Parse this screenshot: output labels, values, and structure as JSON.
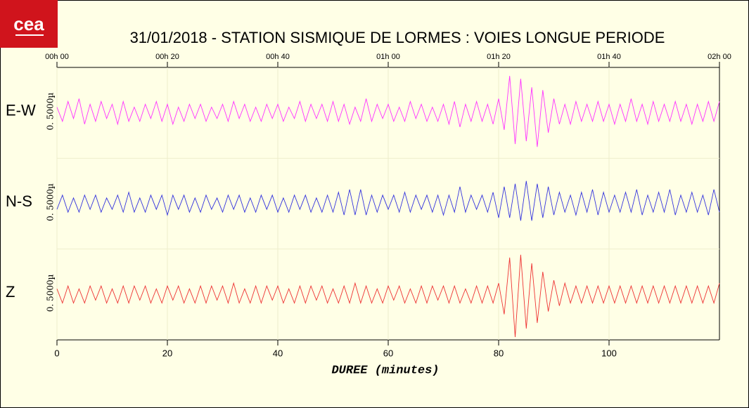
{
  "logo": "cea",
  "chart_data": {
    "type": "line",
    "title": "31/01/2018  -  STATION SISMIQUE DE LORMES : VOIES LONGUE PERIODE",
    "x_label": "DUREE (minutes)",
    "xlim": [
      0,
      120
    ],
    "xticks": [
      0,
      20,
      40,
      60,
      80,
      100
    ],
    "top_xticks": [
      {
        "value": 0,
        "label": "00h 00"
      },
      {
        "value": 20,
        "label": "00h 20"
      },
      {
        "value": 40,
        "label": "00h 40"
      },
      {
        "value": 60,
        "label": "01h 00"
      },
      {
        "value": 80,
        "label": "01h 20"
      },
      {
        "value": 100,
        "label": "01h 40"
      },
      {
        "value": 120,
        "label": "02h 00"
      }
    ],
    "ylim": [
      -1.6,
      1.6
    ],
    "grid": true,
    "x": [
      0,
      1,
      2,
      3,
      4,
      5,
      6,
      7,
      8,
      9,
      10,
      11,
      12,
      13,
      14,
      15,
      16,
      17,
      18,
      19,
      20,
      21,
      22,
      23,
      24,
      25,
      26,
      27,
      28,
      29,
      30,
      31,
      32,
      33,
      34,
      35,
      36,
      37,
      38,
      39,
      40,
      41,
      42,
      43,
      44,
      45,
      46,
      47,
      48,
      49,
      50,
      51,
      52,
      53,
      54,
      55,
      56,
      57,
      58,
      59,
      60,
      61,
      62,
      63,
      64,
      65,
      66,
      67,
      68,
      69,
      70,
      71,
      72,
      73,
      74,
      75,
      76,
      77,
      78,
      79,
      80,
      81,
      82,
      83,
      84,
      85,
      86,
      87,
      88,
      89,
      90,
      91,
      92,
      93,
      94,
      95,
      96,
      97,
      98,
      99,
      100,
      101,
      102,
      103,
      104,
      105,
      106,
      107,
      108,
      109,
      110,
      111,
      112,
      113,
      114,
      115,
      116,
      117,
      118,
      119,
      120
    ],
    "series": [
      {
        "name": "E-W",
        "scale_label": "0. 5000µ",
        "color": "#ff33ff",
        "values": [
          0.2,
          -0.3,
          0.4,
          -0.2,
          0.5,
          -0.4,
          0.3,
          -0.3,
          0.4,
          -0.2,
          0.3,
          -0.4,
          0.4,
          -0.3,
          0.2,
          -0.3,
          0.3,
          -0.2,
          0.4,
          -0.3,
          0.3,
          -0.4,
          0.2,
          -0.3,
          0.3,
          -0.2,
          0.3,
          -0.3,
          0.2,
          -0.2,
          0.3,
          -0.3,
          0.4,
          -0.2,
          0.3,
          -0.3,
          0.2,
          -0.3,
          0.3,
          -0.2,
          0.3,
          -0.3,
          0.2,
          -0.2,
          0.4,
          -0.3,
          0.3,
          -0.2,
          0.3,
          -0.3,
          0.4,
          -0.3,
          0.3,
          -0.4,
          0.2,
          -0.3,
          0.5,
          -0.3,
          0.3,
          -0.2,
          0.3,
          -0.3,
          0.2,
          -0.3,
          0.4,
          -0.2,
          0.3,
          -0.3,
          0.2,
          -0.3,
          0.3,
          -0.4,
          0.4,
          -0.5,
          0.3,
          -0.3,
          0.4,
          -0.3,
          0.3,
          -0.4,
          0.5,
          -0.6,
          1.3,
          -1.1,
          1.2,
          -1.0,
          0.9,
          -1.2,
          0.8,
          -0.7,
          0.5,
          -0.4,
          0.3,
          -0.4,
          0.4,
          -0.3,
          0.3,
          -0.3,
          0.4,
          -0.3,
          0.3,
          -0.4,
          0.3,
          -0.3,
          0.5,
          -0.3,
          0.3,
          -0.4,
          0.4,
          -0.3,
          0.3,
          -0.3,
          0.4,
          -0.3,
          0.3,
          -0.4,
          0.3,
          -0.3,
          0.4,
          -0.3,
          0.4
        ]
      },
      {
        "name": "N-S",
        "scale_label": "0. 5000µ",
        "color": "#3333dd",
        "values": [
          -0.2,
          0.3,
          -0.3,
          0.2,
          -0.3,
          0.3,
          -0.2,
          0.3,
          -0.3,
          0.2,
          -0.2,
          0.3,
          -0.3,
          0.4,
          -0.3,
          0.2,
          -0.3,
          0.3,
          -0.2,
          0.3,
          -0.4,
          0.3,
          -0.2,
          0.3,
          -0.3,
          0.2,
          -0.3,
          0.3,
          -0.2,
          0.2,
          -0.3,
          0.3,
          -0.2,
          0.3,
          -0.3,
          0.2,
          -0.3,
          0.3,
          -0.2,
          0.3,
          -0.3,
          0.2,
          -0.3,
          0.3,
          -0.2,
          0.3,
          -0.3,
          0.2,
          -0.3,
          0.3,
          -0.3,
          0.4,
          -0.4,
          0.5,
          -0.4,
          0.5,
          -0.4,
          0.3,
          -0.3,
          0.3,
          -0.2,
          0.3,
          -0.3,
          0.4,
          -0.3,
          0.3,
          -0.2,
          0.3,
          -0.3,
          0.3,
          -0.4,
          0.3,
          -0.3,
          0.6,
          -0.3,
          0.3,
          -0.2,
          0.3,
          -0.3,
          0.4,
          -0.5,
          0.6,
          -0.5,
          0.7,
          -0.6,
          0.8,
          -0.6,
          0.7,
          -0.5,
          0.6,
          -0.4,
          0.4,
          -0.3,
          0.3,
          -0.4,
          0.4,
          -0.3,
          0.5,
          -0.4,
          0.4,
          -0.3,
          0.3,
          -0.3,
          0.4,
          -0.3,
          0.5,
          -0.4,
          0.3,
          -0.3,
          0.4,
          -0.3,
          0.5,
          -0.4,
          0.3,
          -0.3,
          0.4,
          -0.3,
          0.3,
          -0.4,
          0.5,
          -0.3
        ]
      },
      {
        "name": "Z",
        "scale_label": "0. 5000µ",
        "color": "#ee3333",
        "values": [
          0.2,
          -0.3,
          0.3,
          -0.3,
          0.2,
          -0.3,
          0.3,
          -0.2,
          0.3,
          -0.3,
          0.2,
          -0.3,
          0.3,
          -0.3,
          0.3,
          -0.2,
          0.3,
          -0.3,
          0.2,
          -0.3,
          0.3,
          -0.2,
          0.3,
          -0.3,
          0.2,
          -0.3,
          0.3,
          -0.3,
          0.3,
          -0.2,
          0.3,
          -0.3,
          0.4,
          -0.3,
          0.2,
          -0.3,
          0.3,
          -0.3,
          0.3,
          -0.2,
          0.3,
          -0.3,
          0.2,
          -0.3,
          0.3,
          -0.3,
          0.3,
          -0.2,
          0.3,
          -0.3,
          0.2,
          -0.3,
          0.3,
          -0.3,
          0.4,
          -0.3,
          0.3,
          -0.3,
          0.2,
          -0.3,
          0.3,
          -0.2,
          0.3,
          -0.3,
          0.2,
          -0.3,
          0.3,
          -0.3,
          0.3,
          -0.2,
          0.3,
          -0.3,
          0.3,
          -0.3,
          0.2,
          -0.3,
          0.3,
          -0.3,
          0.3,
          -0.3,
          0.4,
          -0.7,
          1.3,
          -1.5,
          1.4,
          -1.2,
          1.1,
          -1.0,
          0.8,
          -0.6,
          0.5,
          -0.4,
          0.4,
          -0.3,
          0.3,
          -0.3,
          0.3,
          -0.3,
          0.3,
          -0.3,
          0.3,
          -0.3,
          0.3,
          -0.3,
          0.3,
          -0.3,
          0.3,
          -0.3,
          0.3,
          -0.3,
          0.3,
          -0.3,
          0.3,
          -0.3,
          0.3,
          -0.3,
          0.3,
          -0.3,
          0.3,
          -0.3,
          0.4
        ]
      }
    ]
  }
}
